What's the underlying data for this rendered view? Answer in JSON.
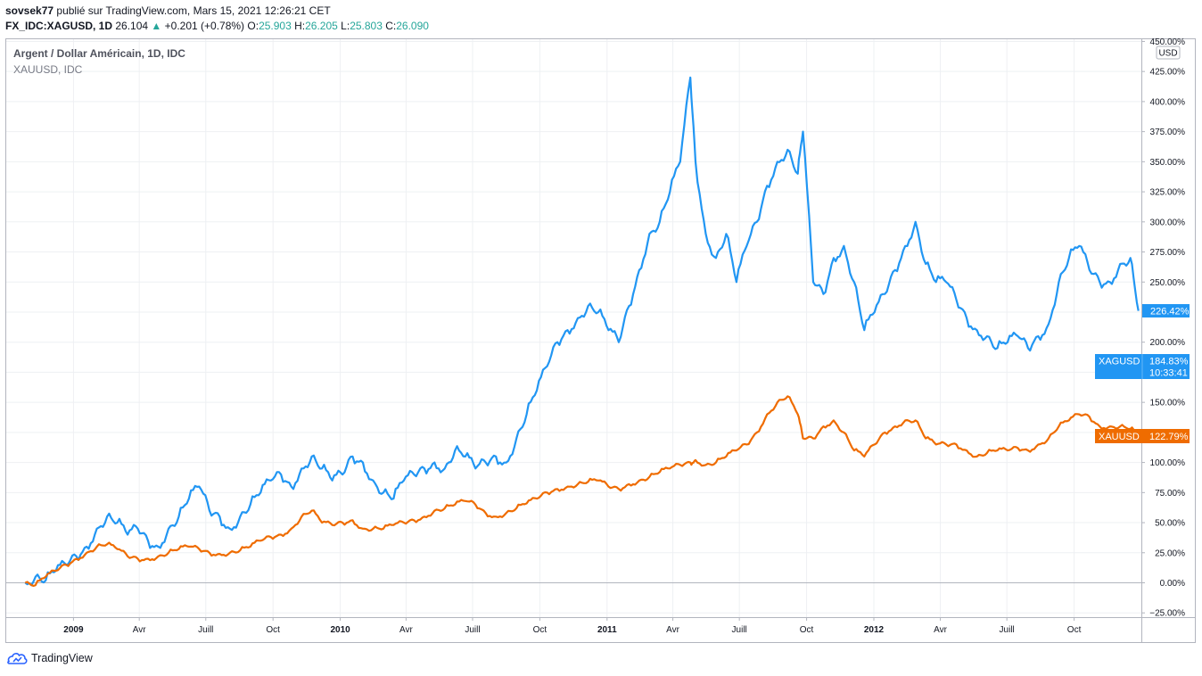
{
  "header": {
    "author": "sovsek77",
    "published": "publié sur TradingView.com, Mars 15, 2021 12:26:21 CET",
    "symbol": "FX_IDC:XAGUSD, 1D",
    "last": "26.104",
    "change": "+0.201 (+0.78%)",
    "o_label": "O:",
    "o": "25.903",
    "h_label": "H:",
    "h": "26.205",
    "l_label": "L:",
    "l": "25.803",
    "c_label": "C:",
    "c": "26.090"
  },
  "legend": {
    "title": "Argent / Dollar Américain, 1D, IDC",
    "compare": "XAUUSD, IDC"
  },
  "currency": "USD",
  "footer": {
    "brand": "TradingView"
  },
  "colors": {
    "silver": "#2196f3",
    "gold": "#ef6c00",
    "up": "#26a69a"
  },
  "badges": {
    "silver_last": "226.42%",
    "xag_name": "XAGUSD",
    "xag_value": "184.83%",
    "xag_time": "10:33:41",
    "xau_name": "XAUUSD",
    "xau_value": "122.79%"
  },
  "chart_data": {
    "type": "line",
    "y_unit": "%",
    "ylim": [
      -25,
      450
    ],
    "y_ticks": [
      "450.00%",
      "425.00%",
      "400.00%",
      "375.00%",
      "350.00%",
      "325.00%",
      "300.00%",
      "275.00%",
      "250.00%",
      "225.00%",
      "200.00%",
      "175.00%",
      "150.00%",
      "125.00%",
      "100.00%",
      "75.00%",
      "50.00%",
      "25.00%",
      "0.00%",
      "−25.00%"
    ],
    "y_tick_values": [
      450,
      425,
      400,
      375,
      350,
      325,
      300,
      275,
      250,
      225,
      200,
      175,
      150,
      125,
      100,
      75,
      50,
      25,
      0,
      -25
    ],
    "x_ticks": [
      "2009",
      "Avr",
      "Juill",
      "Oct",
      "2010",
      "Avr",
      "Juill",
      "Oct",
      "2011",
      "Avr",
      "Juill",
      "Oct",
      "2012",
      "Avr",
      "Juill",
      "Oct"
    ],
    "x_ticks_bold": [
      true,
      false,
      false,
      false,
      true,
      false,
      false,
      false,
      true,
      false,
      false,
      false,
      true,
      false,
      false,
      false
    ],
    "x_range": [
      "2008-10",
      "2013-01"
    ],
    "grid": true,
    "series": [
      {
        "name": "XAGUSD",
        "color": "#2196f3",
        "x": [
          "2008-10-27",
          "2008-11-10",
          "2008-11-24",
          "2008-12-08",
          "2008-12-22",
          "2009-01-05",
          "2009-01-19",
          "2009-02-02",
          "2009-02-16",
          "2009-03-02",
          "2009-03-16",
          "2009-03-30",
          "2009-04-13",
          "2009-04-27",
          "2009-05-11",
          "2009-05-25",
          "2009-06-08",
          "2009-06-22",
          "2009-07-06",
          "2009-07-20",
          "2009-08-03",
          "2009-08-17",
          "2009-08-31",
          "2009-09-14",
          "2009-09-28",
          "2009-10-12",
          "2009-10-26",
          "2009-11-09",
          "2009-11-23",
          "2009-12-07",
          "2009-12-21",
          "2010-01-04",
          "2010-01-18",
          "2010-02-01",
          "2010-02-15",
          "2010-03-01",
          "2010-03-15",
          "2010-03-29",
          "2010-04-12",
          "2010-04-26",
          "2010-05-10",
          "2010-05-24",
          "2010-06-07",
          "2010-06-21",
          "2010-07-05",
          "2010-07-19",
          "2010-08-02",
          "2010-08-16",
          "2010-08-30",
          "2010-09-13",
          "2010-09-27",
          "2010-10-11",
          "2010-10-25",
          "2010-11-08",
          "2010-11-22",
          "2010-12-06",
          "2010-12-20",
          "2011-01-03",
          "2011-01-17",
          "2011-01-31",
          "2011-02-14",
          "2011-02-28",
          "2011-03-14",
          "2011-03-28",
          "2011-04-11",
          "2011-04-25",
          "2011-05-02",
          "2011-05-16",
          "2011-05-30",
          "2011-06-13",
          "2011-06-27",
          "2011-07-11",
          "2011-07-25",
          "2011-08-08",
          "2011-08-22",
          "2011-09-05",
          "2011-09-19",
          "2011-09-26",
          "2011-10-10",
          "2011-10-24",
          "2011-11-07",
          "2011-11-21",
          "2011-12-05",
          "2011-12-19",
          "2012-01-02",
          "2012-01-16",
          "2012-01-30",
          "2012-02-13",
          "2012-02-27",
          "2012-03-12",
          "2012-03-26",
          "2012-04-09",
          "2012-04-23",
          "2012-05-07",
          "2012-05-21",
          "2012-06-04",
          "2012-06-18",
          "2012-07-02",
          "2012-07-16",
          "2012-07-30",
          "2012-08-13",
          "2012-08-27",
          "2012-09-10",
          "2012-09-24",
          "2012-10-08",
          "2012-10-22",
          "2012-11-05",
          "2012-11-19",
          "2012-12-03",
          "2012-12-17",
          "2012-12-28"
        ],
        "values": [
          0,
          5,
          2,
          10,
          15,
          22,
          30,
          45,
          55,
          50,
          40,
          45,
          35,
          30,
          45,
          55,
          70,
          80,
          60,
          55,
          45,
          55,
          65,
          75,
          85,
          90,
          80,
          95,
          105,
          95,
          85,
          90,
          105,
          100,
          85,
          75,
          70,
          85,
          90,
          95,
          100,
          95,
          110,
          105,
          95,
          100,
          105,
          100,
          120,
          140,
          160,
          180,
          200,
          210,
          220,
          230,
          225,
          210,
          200,
          230,
          260,
          290,
          300,
          325,
          350,
          420,
          350,
          290,
          270,
          290,
          250,
          280,
          300,
          330,
          350,
          360,
          340,
          375,
          250,
          240,
          270,
          280,
          250,
          210,
          225,
          240,
          260,
          280,
          300,
          265,
          250,
          250,
          235,
          220,
          210,
          205,
          195,
          200,
          205,
          195,
          205,
          215,
          250,
          270,
          280,
          260,
          250,
          250,
          265,
          270,
          226
        ]
      },
      {
        "name": "XAUUSD",
        "color": "#ef6c00",
        "x": [
          "2008-10-27",
          "2008-11-10",
          "2008-11-24",
          "2008-12-08",
          "2008-12-22",
          "2009-01-05",
          "2009-01-19",
          "2009-02-02",
          "2009-02-16",
          "2009-03-02",
          "2009-03-16",
          "2009-03-30",
          "2009-04-13",
          "2009-04-27",
          "2009-05-11",
          "2009-05-25",
          "2009-06-08",
          "2009-06-22",
          "2009-07-06",
          "2009-07-20",
          "2009-08-03",
          "2009-08-17",
          "2009-08-31",
          "2009-09-14",
          "2009-09-28",
          "2009-10-12",
          "2009-10-26",
          "2009-11-09",
          "2009-11-23",
          "2009-12-07",
          "2009-12-21",
          "2010-01-04",
          "2010-01-18",
          "2010-02-01",
          "2010-02-15",
          "2010-03-01",
          "2010-03-15",
          "2010-03-29",
          "2010-04-12",
          "2010-04-26",
          "2010-05-10",
          "2010-05-24",
          "2010-06-07",
          "2010-06-21",
          "2010-07-05",
          "2010-07-19",
          "2010-08-02",
          "2010-08-16",
          "2010-08-30",
          "2010-09-13",
          "2010-09-27",
          "2010-10-11",
          "2010-10-25",
          "2010-11-08",
          "2010-11-22",
          "2010-12-06",
          "2010-12-20",
          "2011-01-03",
          "2011-01-17",
          "2011-01-31",
          "2011-02-14",
          "2011-02-28",
          "2011-03-14",
          "2011-03-28",
          "2011-04-11",
          "2011-04-25",
          "2011-05-02",
          "2011-05-16",
          "2011-05-30",
          "2011-06-13",
          "2011-06-27",
          "2011-07-11",
          "2011-07-25",
          "2011-08-08",
          "2011-08-22",
          "2011-09-05",
          "2011-09-19",
          "2011-09-26",
          "2011-10-10",
          "2011-10-24",
          "2011-11-07",
          "2011-11-21",
          "2011-12-05",
          "2011-12-19",
          "2012-01-02",
          "2012-01-16",
          "2012-01-30",
          "2012-02-13",
          "2012-02-27",
          "2012-03-12",
          "2012-03-26",
          "2012-04-09",
          "2012-04-23",
          "2012-05-07",
          "2012-05-21",
          "2012-06-04",
          "2012-06-18",
          "2012-07-02",
          "2012-07-16",
          "2012-07-30",
          "2012-08-13",
          "2012-08-27",
          "2012-09-10",
          "2012-09-24",
          "2012-10-08",
          "2012-10-22",
          "2012-11-05",
          "2012-11-19",
          "2012-12-03",
          "2012-12-17",
          "2012-12-28"
        ],
        "values": [
          0,
          -2,
          5,
          10,
          15,
          20,
          25,
          30,
          32,
          28,
          22,
          20,
          20,
          22,
          25,
          28,
          30,
          28,
          25,
          24,
          25,
          27,
          30,
          35,
          38,
          40,
          45,
          55,
          60,
          50,
          48,
          50,
          52,
          45,
          45,
          45,
          48,
          50,
          52,
          55,
          60,
          62,
          65,
          68,
          65,
          58,
          55,
          58,
          62,
          66,
          70,
          75,
          78,
          80,
          82,
          84,
          85,
          80,
          78,
          82,
          85,
          88,
          92,
          95,
          98,
          100,
          102,
          98,
          100,
          105,
          110,
          115,
          125,
          140,
          150,
          155,
          140,
          120,
          120,
          130,
          135,
          125,
          110,
          105,
          115,
          125,
          130,
          135,
          135,
          120,
          115,
          115,
          115,
          110,
          105,
          108,
          110,
          110,
          112,
          110,
          115,
          120,
          130,
          135,
          140,
          138,
          130,
          130,
          130,
          128,
          123
        ]
      }
    ]
  }
}
